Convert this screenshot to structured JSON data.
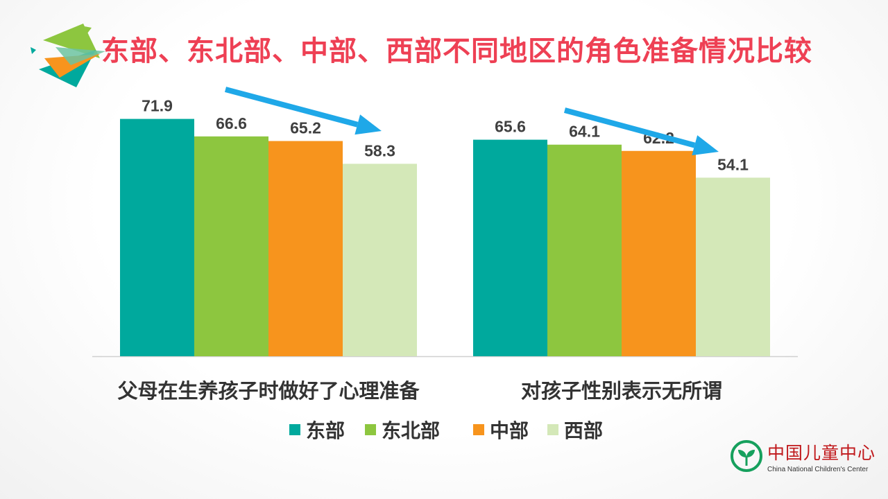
{
  "title": "东部、东北部、中部、西部不同地区的角色准备情况比较",
  "colors": {
    "title": "#ee4054",
    "east": "#00a99d",
    "northeast": "#8dc63f",
    "central": "#f7941d",
    "west": "#d4e8b8",
    "trend_arrow": "#1fa8e8"
  },
  "chart_data": {
    "type": "bar",
    "categories": [
      "父母在生养孩子时做好了心理准备",
      "对孩子性别表示无所谓"
    ],
    "series": [
      {
        "name": "东部",
        "values": [
          71.9,
          65.6
        ],
        "color": "#00a99d"
      },
      {
        "name": "东北部",
        "values": [
          66.6,
          64.1
        ],
        "color": "#8dc63f"
      },
      {
        "name": "中部",
        "values": [
          65.2,
          62.2
        ],
        "color": "#f7941d"
      },
      {
        "name": "西部",
        "values": [
          58.3,
          54.1
        ],
        "color": "#d4e8b8"
      }
    ],
    "value_labels": [
      [
        "71.9",
        "65.6"
      ],
      [
        "66.6",
        "64.1"
      ],
      [
        "65.2",
        "62.2"
      ],
      [
        "58.3",
        "54.1"
      ]
    ],
    "ylim": [
      0,
      80
    ],
    "grid": false,
    "legend": "bottom",
    "annotations": [
      "downward-trend-arrow",
      "downward-trend-arrow"
    ]
  },
  "logo": {
    "name_cn": "中国儿童中心",
    "name_en": "China National Children's Center"
  }
}
